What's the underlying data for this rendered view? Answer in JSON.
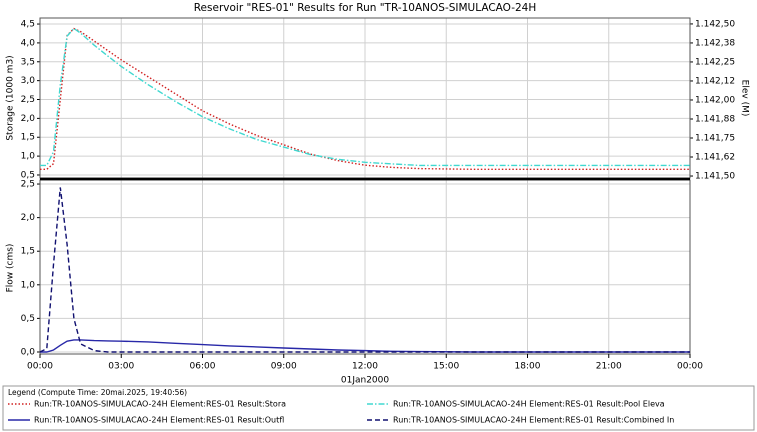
{
  "chart_data": [
    {
      "type": "line",
      "title": "Reservoir \"RES-01\" Results for Run \"TR-10ANOS-SIMULACAO-24H",
      "ylabel": "Storage (1000 m3)",
      "y2label": "Elev (M)",
      "x": [
        0,
        0.25,
        0.5,
        0.75,
        1,
        1.25,
        1.5,
        2,
        2.5,
        3,
        4,
        5,
        6,
        7,
        8,
        9,
        10,
        11,
        12,
        13,
        14,
        16,
        18,
        20,
        22,
        24
      ],
      "xlim": [
        0,
        24
      ],
      "ylim": [
        0.42,
        4.66
      ],
      "yticks": [
        {
          "value": 0.5,
          "label": "0,5"
        },
        {
          "value": 1.0,
          "label": "1,0"
        },
        {
          "value": 1.5,
          "label": "1,5"
        },
        {
          "value": 2.0,
          "label": "2,0"
        },
        {
          "value": 2.5,
          "label": "2,5"
        },
        {
          "value": 3.0,
          "label": "3,0"
        },
        {
          "value": 3.5,
          "label": "3,5"
        },
        {
          "value": 4.0,
          "label": "4,0"
        },
        {
          "value": 4.5,
          "label": "4,5"
        }
      ],
      "y2lim": [
        1141.487,
        1142.539
      ],
      "y2ticks": [
        {
          "value": 1141.5,
          "label": "1.141,50"
        },
        {
          "value": 1141.625,
          "label": "1.141,62"
        },
        {
          "value": 1141.75,
          "label": "1.141,75"
        },
        {
          "value": 1141.875,
          "label": "1.141,88"
        },
        {
          "value": 1142.0,
          "label": "1.142,00"
        },
        {
          "value": 1142.125,
          "label": "1.142,12"
        },
        {
          "value": 1142.25,
          "label": "1.142,25"
        },
        {
          "value": 1142.375,
          "label": "1.142,38"
        },
        {
          "value": 1142.5,
          "label": "1.142,50"
        }
      ],
      "grid": true,
      "series": [
        {
          "name": "Run:TR-10ANOS-SIMULACAO-24H Element:RES-01 Result:Stora",
          "color": "#d02020",
          "style": "dotted",
          "values": [
            0.65,
            0.65,
            0.8,
            2.5,
            4.2,
            4.38,
            4.3,
            4.05,
            3.8,
            3.55,
            3.1,
            2.65,
            2.2,
            1.85,
            1.55,
            1.3,
            1.05,
            0.88,
            0.76,
            0.7,
            0.67,
            0.65,
            0.65,
            0.65,
            0.65,
            0.65
          ]
        },
        {
          "name": "Run:TR-10ANOS-SIMULACAO-24H Element:RES-01 Result:Pool Eleva",
          "color": "#40d8d0",
          "style": "dashdot",
          "axis": "y2",
          "values": [
            1141.57,
            1141.57,
            1141.66,
            1142.1,
            1142.42,
            1142.47,
            1142.44,
            1142.36,
            1142.29,
            1142.22,
            1142.1,
            1141.99,
            1141.89,
            1141.81,
            1141.74,
            1141.69,
            1141.64,
            1141.61,
            1141.59,
            1141.58,
            1141.57,
            1141.57,
            1141.57,
            1141.57,
            1141.57,
            1141.57
          ]
        }
      ]
    },
    {
      "type": "line",
      "ylabel": "Flow (cms)",
      "xlabel": "01Jan2000",
      "x": [
        0,
        0.25,
        0.5,
        0.75,
        1,
        1.25,
        1.5,
        2,
        2.5,
        3,
        4,
        5,
        6,
        7,
        8,
        9,
        10,
        11,
        12,
        13,
        14,
        16,
        18,
        20,
        22,
        24
      ],
      "xlim": [
        0,
        24
      ],
      "xticks": [
        {
          "value": 0,
          "label": "00:00"
        },
        {
          "value": 3,
          "label": "03:00"
        },
        {
          "value": 6,
          "label": "06:00"
        },
        {
          "value": 9,
          "label": "09:00"
        },
        {
          "value": 12,
          "label": "12:00"
        },
        {
          "value": 15,
          "label": "15:00"
        },
        {
          "value": 18,
          "label": "18:00"
        },
        {
          "value": 21,
          "label": "21:00"
        },
        {
          "value": 24,
          "label": "00:00"
        }
      ],
      "ylim": [
        -0.03,
        2.56
      ],
      "yticks": [
        {
          "value": 0,
          "label": "0,0"
        },
        {
          "value": 0.5,
          "label": "0,5"
        },
        {
          "value": 1.0,
          "label": "1,0"
        },
        {
          "value": 1.5,
          "label": "1,5"
        },
        {
          "value": 2.0,
          "label": "2,0"
        },
        {
          "value": 2.5,
          "label": "2,5"
        }
      ],
      "grid": true,
      "series": [
        {
          "name": "Run:TR-10ANOS-SIMULACAO-24H Element:RES-01 Result:Outfl",
          "color": "#2828a8",
          "style": "solid",
          "values": [
            0,
            0,
            0.03,
            0.1,
            0.16,
            0.18,
            0.18,
            0.17,
            0.165,
            0.16,
            0.15,
            0.13,
            0.11,
            0.09,
            0.075,
            0.06,
            0.045,
            0.03,
            0.02,
            0.01,
            0.005,
            0,
            0,
            0,
            0,
            0
          ]
        },
        {
          "name": "Run:TR-10ANOS-SIMULACAO-24H Element:RES-01 Result:Combined In",
          "color": "#101070",
          "style": "dashed",
          "values": [
            0,
            0.05,
            1.3,
            2.45,
            1.6,
            0.5,
            0.12,
            0.02,
            0,
            0,
            0,
            0,
            0,
            0,
            0,
            0,
            0,
            0,
            0,
            0,
            0,
            0,
            0,
            0,
            0,
            0
          ]
        }
      ]
    }
  ],
  "legend": {
    "title": "Legend (Compute Time: 20mai.2025, 19:40:56)"
  }
}
